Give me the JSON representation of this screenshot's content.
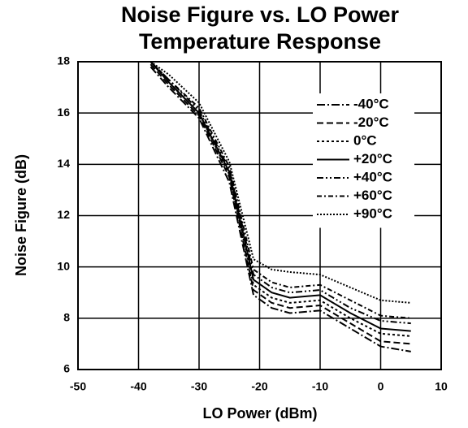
{
  "chart_data": {
    "type": "line",
    "title": [
      "Noise Figure vs. LO Power",
      "Temperature Response"
    ],
    "x_label": "LO Power (dBm)",
    "y_label": "Noise Figure (dB)",
    "x": [
      -38,
      -35,
      -30,
      -25,
      -21,
      -18,
      -15,
      -10,
      -5,
      0,
      5
    ],
    "series": [
      {
        "name": "-40°C",
        "color": "#000000",
        "dash": "10 3 2 3",
        "values": [
          17.8,
          17.0,
          15.8,
          13.3,
          8.9,
          8.4,
          8.2,
          8.3,
          7.6,
          6.9,
          6.7
        ]
      },
      {
        "name": "-20°C",
        "color": "#000000",
        "dash": "8 4",
        "values": [
          17.9,
          17.1,
          15.9,
          13.5,
          9.1,
          8.6,
          8.4,
          8.5,
          7.8,
          7.1,
          7.0
        ]
      },
      {
        "name": "0°C",
        "color": "#000000",
        "dash": "3 3",
        "values": [
          18.0,
          17.2,
          16.0,
          13.6,
          9.3,
          8.8,
          8.6,
          8.7,
          8.0,
          7.4,
          7.3
        ]
      },
      {
        "name": "+20°C",
        "color": "#000000",
        "dash": "none",
        "values": [
          18.0,
          17.2,
          16.0,
          13.7,
          9.5,
          9.0,
          8.8,
          8.9,
          8.2,
          7.6,
          7.5
        ]
      },
      {
        "name": "+40°C",
        "color": "#000000",
        "dash": "8 3 2 3 2 3",
        "values": [
          18.0,
          17.3,
          16.1,
          13.8,
          9.7,
          9.2,
          9.0,
          9.1,
          8.4,
          7.9,
          7.8
        ]
      },
      {
        "name": "+60°C",
        "color": "#000000",
        "dash": "6 3 2 3",
        "values": [
          18.0,
          17.3,
          16.2,
          13.9,
          9.9,
          9.4,
          9.2,
          9.3,
          8.7,
          8.1,
          8.0
        ]
      },
      {
        "name": "+90°C",
        "color": "#000000",
        "dash": "2 2",
        "values": [
          18.0,
          17.5,
          16.4,
          14.1,
          10.3,
          9.9,
          9.8,
          9.7,
          9.2,
          8.7,
          8.6
        ]
      }
    ],
    "xlim": [
      -50,
      10
    ],
    "xticks": [
      -50,
      -40,
      -30,
      -20,
      -10,
      0,
      10
    ],
    "ylim": [
      6,
      18
    ],
    "yticks": [
      6,
      8,
      10,
      12,
      14,
      16,
      18
    ],
    "grid": true,
    "legend": "upper right"
  }
}
